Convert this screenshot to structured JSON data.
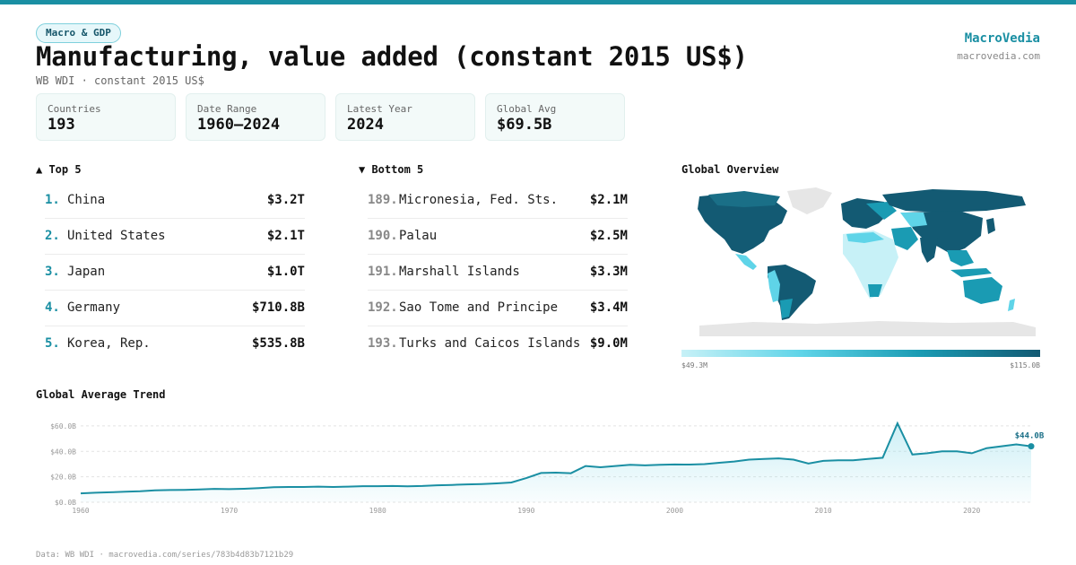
{
  "header": {
    "tag": "Macro & GDP",
    "title": "Manufacturing, value added (constant 2015 US$)",
    "subtitle": "WB WDI · constant 2015 US$",
    "brand_name": "MacroVedia",
    "brand_url": "macrovedia.com"
  },
  "stats": [
    {
      "label": "Countries",
      "value": "193"
    },
    {
      "label": "Date Range",
      "value": "1960–2024"
    },
    {
      "label": "Latest Year",
      "value": "2024"
    },
    {
      "label": "Global Avg",
      "value": "$69.5B"
    }
  ],
  "top5": {
    "title": "▲ Top 5",
    "items": [
      {
        "rank": "1.",
        "name": "China",
        "value": "$3.2T"
      },
      {
        "rank": "2.",
        "name": "United States",
        "value": "$2.1T"
      },
      {
        "rank": "3.",
        "name": "Japan",
        "value": "$1.0T"
      },
      {
        "rank": "4.",
        "name": "Germany",
        "value": "$710.8B"
      },
      {
        "rank": "5.",
        "name": "Korea, Rep.",
        "value": "$535.8B"
      }
    ]
  },
  "bottom5": {
    "title": "▼ Bottom 5",
    "items": [
      {
        "rank": "189.",
        "name": "Micronesia, Fed. Sts.",
        "value": "$2.1M"
      },
      {
        "rank": "190.",
        "name": "Palau",
        "value": "$2.5M"
      },
      {
        "rank": "191.",
        "name": "Marshall Islands",
        "value": "$3.3M"
      },
      {
        "rank": "192.",
        "name": "Sao Tome and Principe",
        "value": "$3.4M"
      },
      {
        "rank": "193.",
        "name": "Turks and Caicos Islands",
        "value": "$9.0M"
      }
    ]
  },
  "map": {
    "title": "Global Overview",
    "legend_min": "$49.3M",
    "legend_max": "$115.0B",
    "colors": {
      "low": "#c7f1f7",
      "mid": "#5fd4e8",
      "high": "#1a9bb3",
      "top": "#135a73",
      "nodata": "#e6e6e6"
    }
  },
  "trend": {
    "title": "Global Average Trend",
    "end_label": "$44.0B",
    "line_color": "#1a8fa3"
  },
  "footer": "Data: WB WDI · macrovedia.com/series/783b4d83b7121b29",
  "chart_data": {
    "type": "line",
    "title": "Global Average Trend",
    "xlabel": "",
    "ylabel": "",
    "x_ticks": [
      "1960",
      "1970",
      "1980",
      "1990",
      "2000",
      "2010",
      "2020"
    ],
    "y_ticks": [
      "$0.0B",
      "$20.0B",
      "$40.0B",
      "$60.0B"
    ],
    "xlim": [
      1960,
      2024
    ],
    "ylim": [
      0,
      67
    ],
    "grid": true,
    "series": [
      {
        "x": [
          1960,
          1961,
          1962,
          1963,
          1964,
          1965,
          1966,
          1967,
          1968,
          1969,
          1970,
          1971,
          1972,
          1973,
          1974,
          1975,
          1976,
          1977,
          1978,
          1979,
          1980,
          1981,
          1982,
          1983,
          1984,
          1985,
          1986,
          1987,
          1988,
          1989,
          1990,
          1991,
          1992,
          1993,
          1994,
          1995,
          1996,
          1997,
          1998,
          1999,
          2000,
          2001,
          2002,
          2003,
          2004,
          2005,
          2006,
          2007,
          2008,
          2009,
          2010,
          2011,
          2012,
          2013,
          2014,
          2015,
          2016,
          2017,
          2018,
          2019,
          2020,
          2021,
          2022,
          2023,
          2024
        ],
        "values": [
          7.0,
          7.5,
          7.8,
          8.3,
          8.6,
          9.3,
          9.6,
          9.7,
          10.0,
          10.5,
          10.3,
          10.6,
          11.1,
          11.8,
          12.0,
          12.0,
          12.3,
          12.0,
          12.3,
          12.6,
          12.6,
          12.8,
          12.5,
          12.8,
          13.3,
          13.6,
          14.0,
          14.3,
          14.8,
          15.5,
          19.0,
          23.0,
          23.3,
          22.8,
          28.5,
          27.5,
          28.5,
          29.5,
          29.0,
          29.5,
          29.7,
          29.6,
          30.0,
          31.0,
          32.0,
          33.5,
          34.0,
          34.5,
          33.5,
          30.5,
          32.5,
          33.0,
          33.0,
          34.0,
          35.0,
          62.0,
          37.5,
          38.5,
          40.0,
          40.0,
          38.5,
          42.5,
          44.0,
          45.5,
          44.0
        ]
      }
    ]
  }
}
